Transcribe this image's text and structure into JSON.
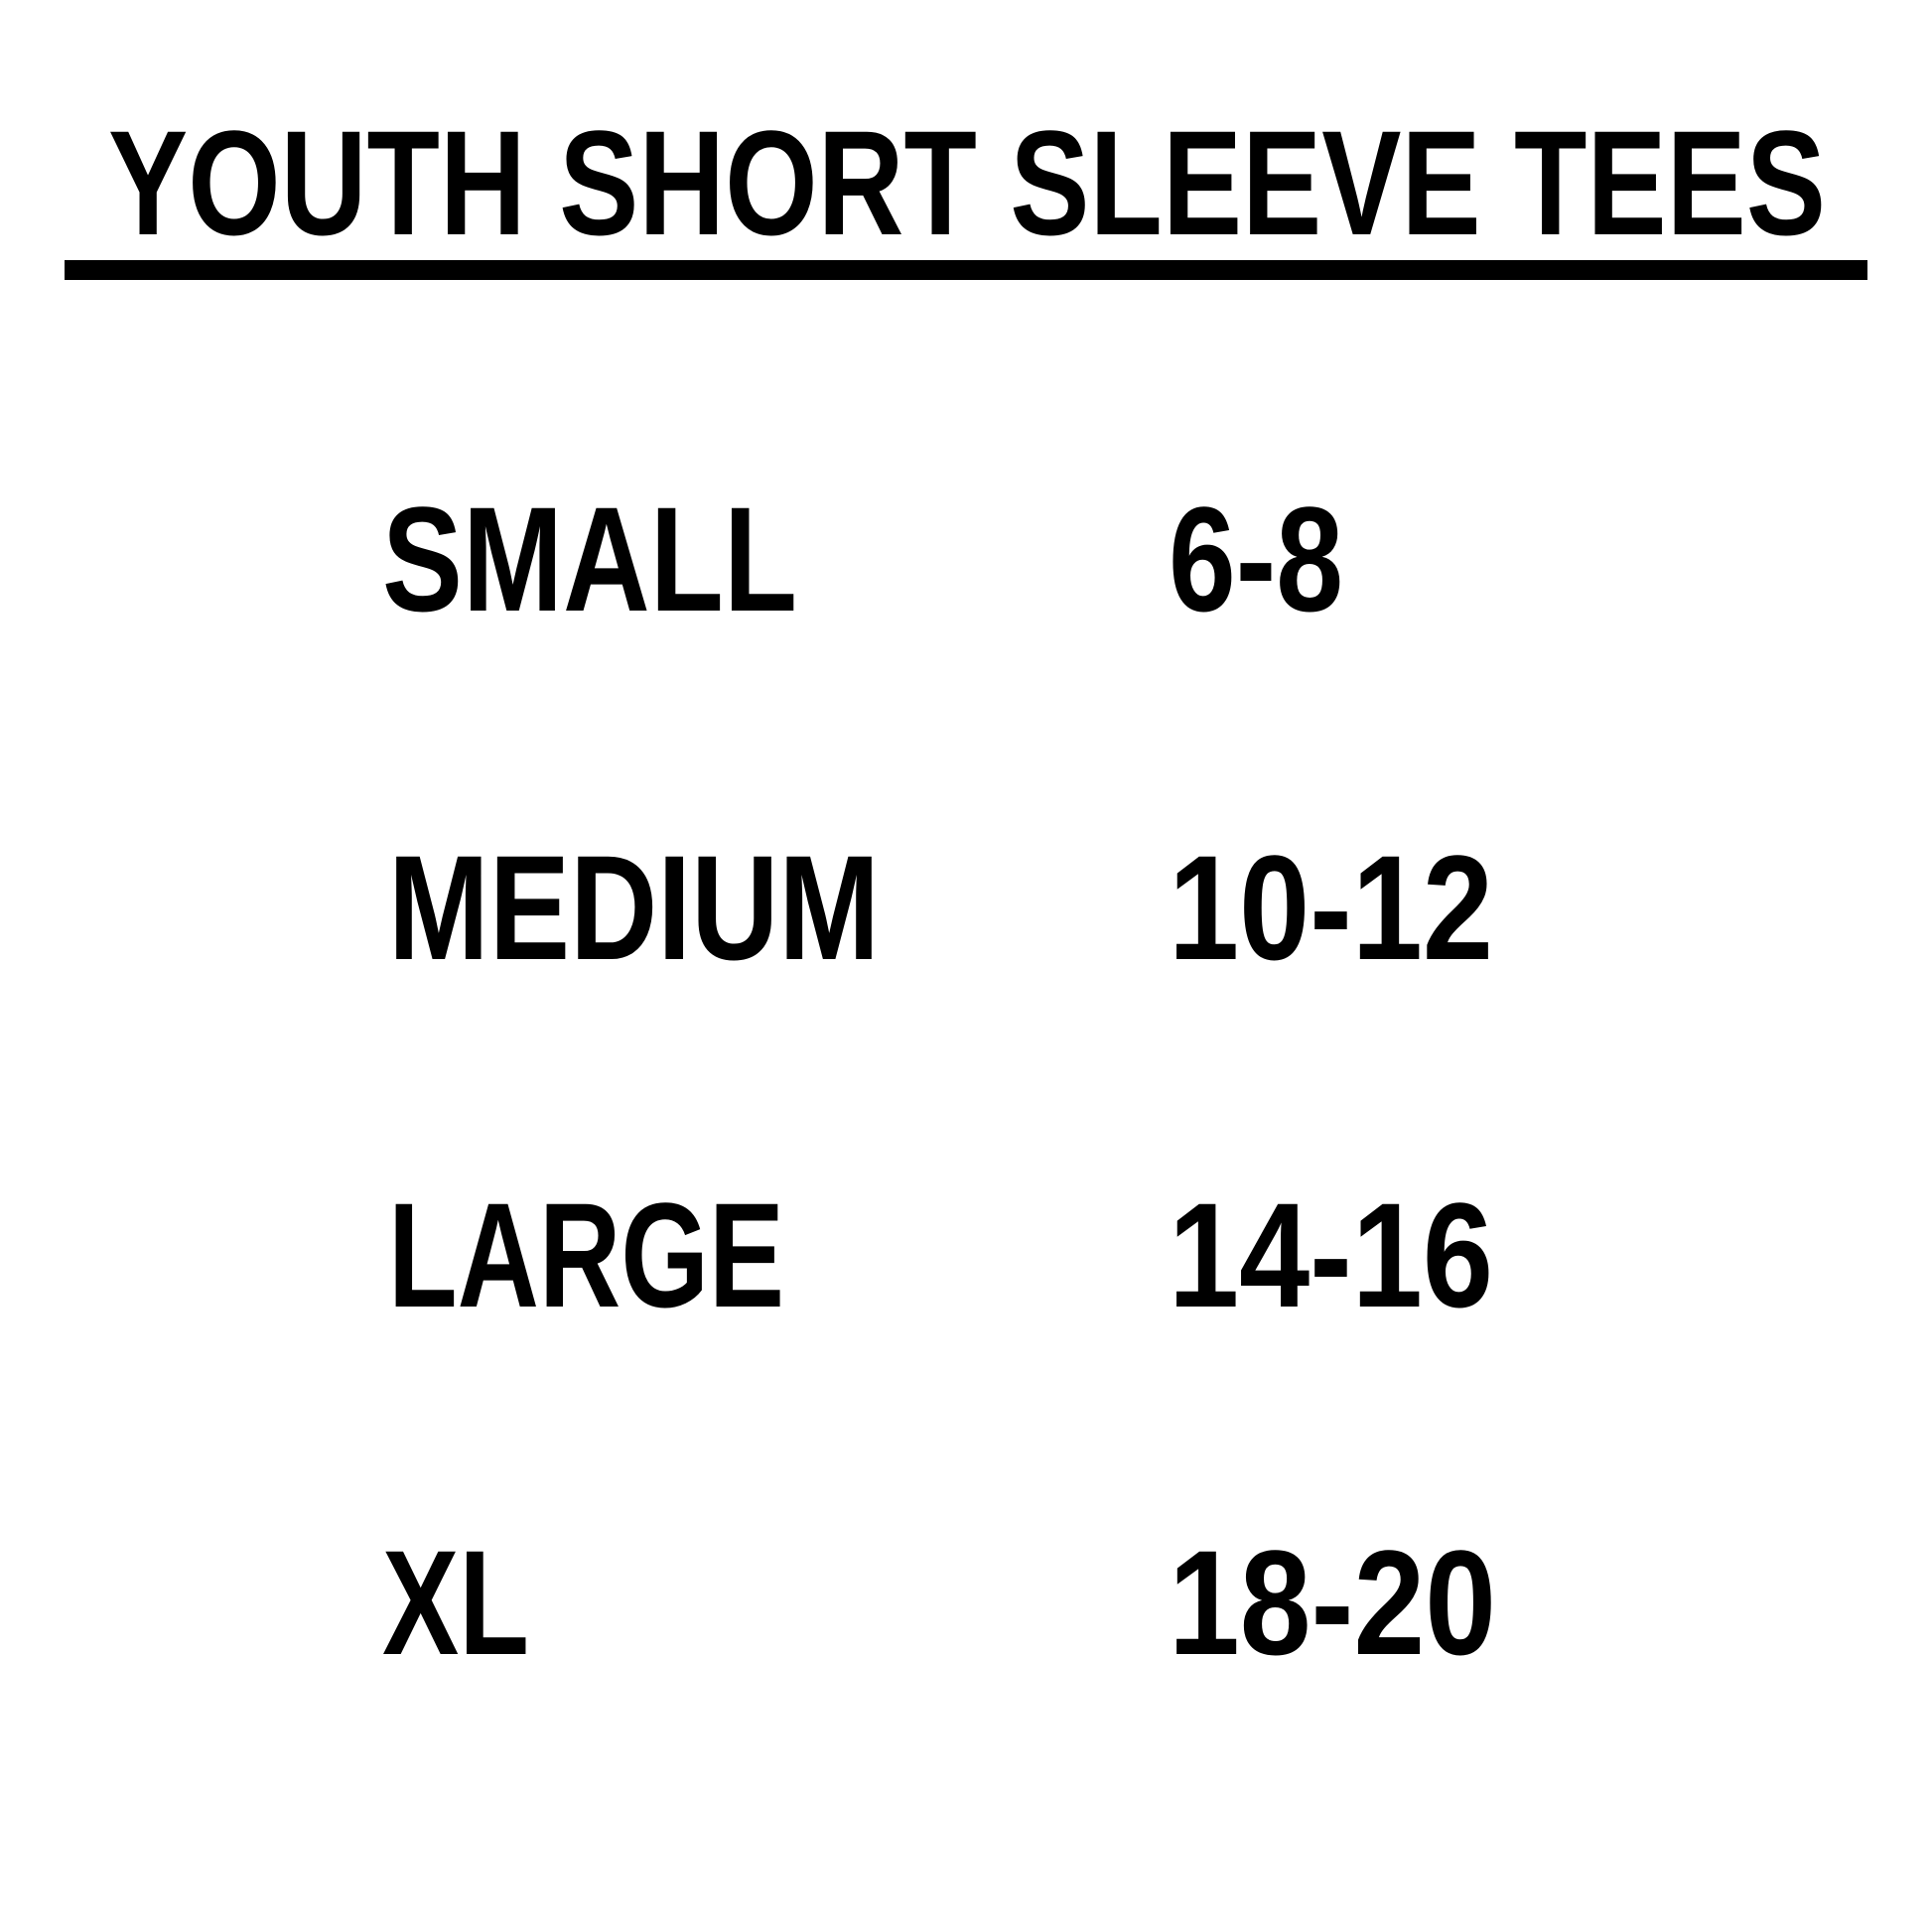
{
  "title": "YOUTH SHORT SLEEVE TEES",
  "sizes": [
    {
      "label": "SMALL",
      "range": "6-8"
    },
    {
      "label": "MEDIUM",
      "range": "10-12"
    },
    {
      "label": "LARGE",
      "range": "14-16"
    },
    {
      "label": "XL",
      "range": "18-20"
    }
  ]
}
